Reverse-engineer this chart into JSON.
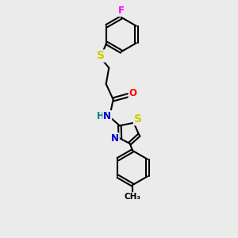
{
  "background_color": "#ebebeb",
  "bond_color": "#000000",
  "atom_colors": {
    "F": "#ff00ff",
    "S": "#cccc00",
    "O": "#ff0000",
    "N": "#0000cc",
    "H": "#008080",
    "C": "#000000"
  },
  "bond_width": 1.5,
  "font_size": 8.5,
  "figsize": [
    3.0,
    3.0
  ],
  "dpi": 100
}
